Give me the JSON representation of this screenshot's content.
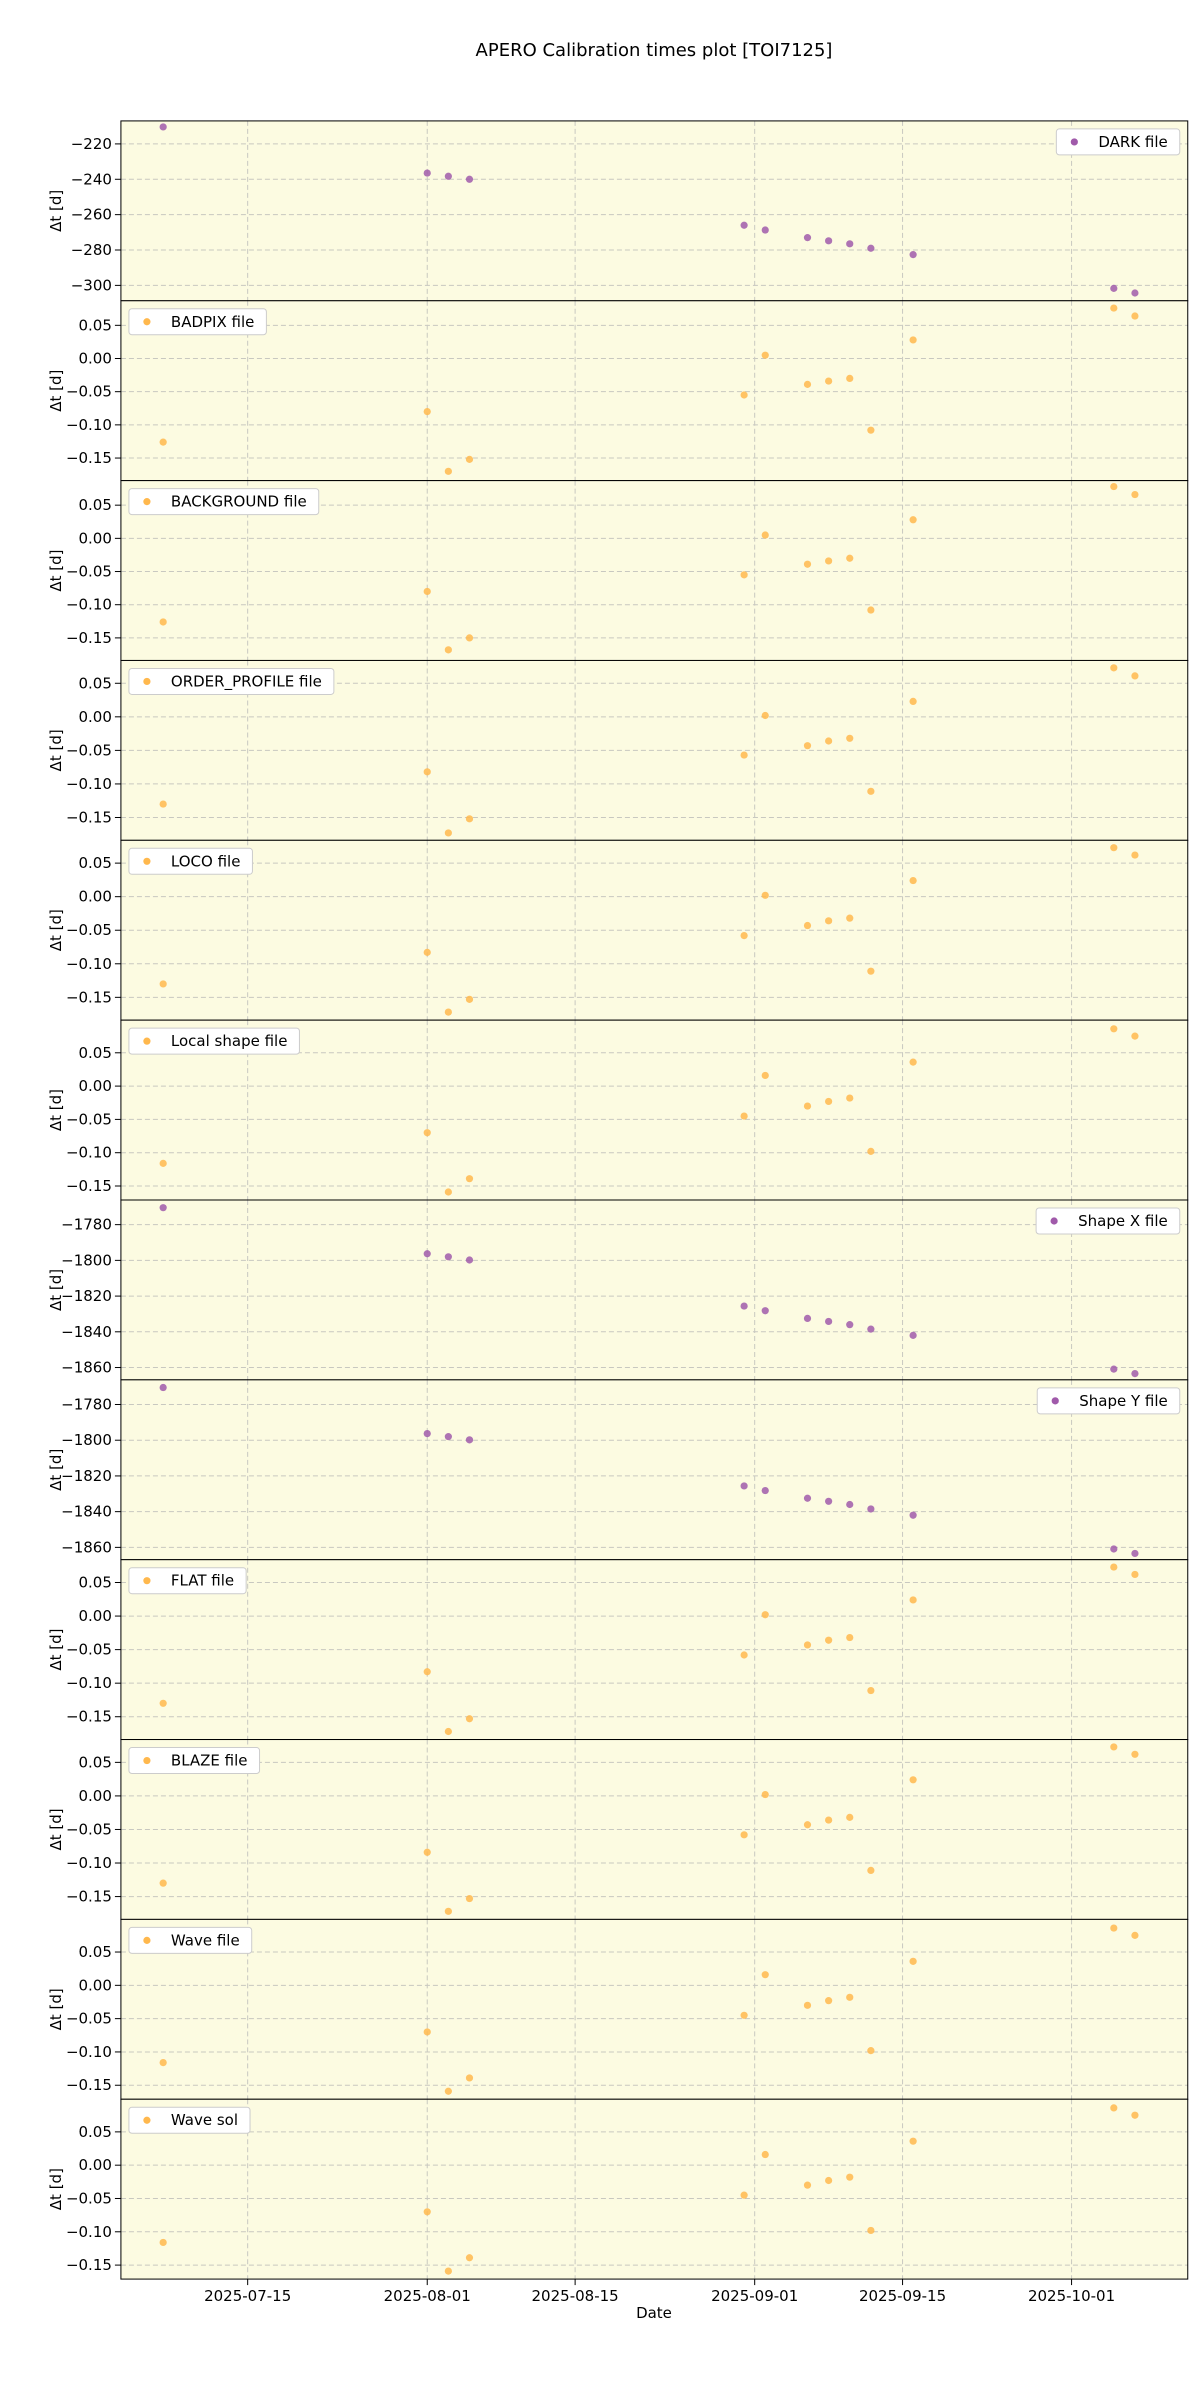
{
  "title": "APERO Calibration times plot [TOI7125]",
  "xlabel": "Date",
  "chart_data": [
    {
      "type": "scatter",
      "ylabel": "Δt [d]",
      "legend": "upper right",
      "grid": true,
      "x": [
        "2025-07-07",
        "2025-08-01",
        "2025-08-03",
        "2025-08-05",
        "2025-08-31",
        "2025-09-02",
        "2025-09-06",
        "2025-09-08",
        "2025-09-10",
        "2025-09-12",
        "2025-09-16",
        "2025-10-05",
        "2025-10-07"
      ],
      "xlim": [
        "2025-07-03",
        "2025-10-12"
      ],
      "xticks": [
        "2025-07-15",
        "2025-08-01",
        "2025-08-15",
        "2025-09-01",
        "2025-09-15",
        "2025-10-01"
      ],
      "ylim": [
        -308.7,
        -207
      ],
      "yticks": [
        {
          "value": -300,
          "label": "−300"
        },
        {
          "value": -280,
          "label": "−280"
        },
        {
          "value": -260,
          "label": "−260"
        },
        {
          "value": -240,
          "label": "−240"
        },
        {
          "value": -220,
          "label": "−220"
        }
      ],
      "series": [
        {
          "name": "DARK file",
          "color": "#a05aaa",
          "values": [
            -210.4,
            -236.5,
            -238.3,
            -240,
            -266,
            -268.7,
            -273,
            -274.8,
            -276.5,
            -279,
            -282.6,
            -301.7,
            -304.3
          ]
        }
      ]
    },
    {
      "type": "scatter",
      "ylabel": "Δt [d]",
      "legend": "upper left",
      "grid": true,
      "x": [
        "2025-07-07",
        "2025-08-01",
        "2025-08-03",
        "2025-08-05",
        "2025-08-31",
        "2025-09-02",
        "2025-09-06",
        "2025-09-08",
        "2025-09-10",
        "2025-09-12",
        "2025-09-16",
        "2025-10-05",
        "2025-10-07"
      ],
      "xlim": [
        "2025-07-03",
        "2025-10-12"
      ],
      "xticks": [
        "2025-07-15",
        "2025-08-01",
        "2025-08-15",
        "2025-09-01",
        "2025-09-15",
        "2025-10-01"
      ],
      "ylim": [
        -0.184,
        0.087
      ],
      "yticks": [
        {
          "value": -0.15,
          "label": "−0.15"
        },
        {
          "value": -0.1,
          "label": "−0.10"
        },
        {
          "value": -0.05,
          "label": "−0.05"
        },
        {
          "value": 0,
          "label": "0.00"
        },
        {
          "value": 0.05,
          "label": "0.05"
        }
      ],
      "series": [
        {
          "name": "BADPIX file",
          "color": "#ffb84d",
          "values": [
            -0.126,
            -0.08,
            -0.17,
            -0.152,
            -0.055,
            0.005,
            -0.039,
            -0.034,
            -0.03,
            -0.108,
            0.028,
            0.076,
            0.064
          ]
        }
      ]
    },
    {
      "type": "scatter",
      "ylabel": "Δt [d]",
      "legend": "upper left",
      "grid": true,
      "x": [
        "2025-07-07",
        "2025-08-01",
        "2025-08-03",
        "2025-08-05",
        "2025-08-31",
        "2025-09-02",
        "2025-09-06",
        "2025-09-08",
        "2025-09-10",
        "2025-09-12",
        "2025-09-16",
        "2025-10-05",
        "2025-10-07"
      ],
      "xlim": [
        "2025-07-03",
        "2025-10-12"
      ],
      "xticks": [
        "2025-07-15",
        "2025-08-01",
        "2025-08-15",
        "2025-09-01",
        "2025-09-15",
        "2025-10-01"
      ],
      "ylim": [
        -0.184,
        0.087
      ],
      "yticks": [
        {
          "value": -0.15,
          "label": "−0.15"
        },
        {
          "value": -0.1,
          "label": "−0.10"
        },
        {
          "value": -0.05,
          "label": "−0.05"
        },
        {
          "value": 0,
          "label": "0.00"
        },
        {
          "value": 0.05,
          "label": "0.05"
        }
      ],
      "series": [
        {
          "name": "BACKGROUND file",
          "color": "#ffb84d",
          "values": [
            -0.126,
            -0.08,
            -0.168,
            -0.15,
            -0.055,
            0.005,
            -0.039,
            -0.034,
            -0.03,
            -0.108,
            0.028,
            0.078,
            0.066
          ]
        }
      ]
    },
    {
      "type": "scatter",
      "ylabel": "Δt [d]",
      "legend": "upper left",
      "grid": true,
      "x": [
        "2025-07-07",
        "2025-08-01",
        "2025-08-03",
        "2025-08-05",
        "2025-08-31",
        "2025-09-02",
        "2025-09-06",
        "2025-09-08",
        "2025-09-10",
        "2025-09-12",
        "2025-09-16",
        "2025-10-05",
        "2025-10-07"
      ],
      "xlim": [
        "2025-07-03",
        "2025-10-12"
      ],
      "xticks": [
        "2025-07-15",
        "2025-08-01",
        "2025-08-15",
        "2025-09-01",
        "2025-09-15",
        "2025-10-01"
      ],
      "ylim": [
        -0.184,
        0.084
      ],
      "yticks": [
        {
          "value": -0.15,
          "label": "−0.15"
        },
        {
          "value": -0.1,
          "label": "−0.10"
        },
        {
          "value": -0.05,
          "label": "−0.05"
        },
        {
          "value": 0,
          "label": "0.00"
        },
        {
          "value": 0.05,
          "label": "0.05"
        }
      ],
      "series": [
        {
          "name": "ORDER_PROFILE file",
          "color": "#ffb84d",
          "values": [
            -0.13,
            -0.082,
            -0.173,
            -0.152,
            -0.057,
            0.002,
            -0.043,
            -0.036,
            -0.032,
            -0.111,
            0.023,
            0.073,
            0.061
          ]
        }
      ]
    },
    {
      "type": "scatter",
      "ylabel": "Δt [d]",
      "legend": "upper left",
      "grid": true,
      "x": [
        "2025-07-07",
        "2025-08-01",
        "2025-08-03",
        "2025-08-05",
        "2025-08-31",
        "2025-09-02",
        "2025-09-06",
        "2025-09-08",
        "2025-09-10",
        "2025-09-12",
        "2025-09-16",
        "2025-10-05",
        "2025-10-07"
      ],
      "xlim": [
        "2025-07-03",
        "2025-10-12"
      ],
      "xticks": [
        "2025-07-15",
        "2025-08-01",
        "2025-08-15",
        "2025-09-01",
        "2025-09-15",
        "2025-10-01"
      ],
      "ylim": [
        -0.184,
        0.084
      ],
      "yticks": [
        {
          "value": -0.15,
          "label": "−0.15"
        },
        {
          "value": -0.1,
          "label": "−0.10"
        },
        {
          "value": -0.05,
          "label": "−0.05"
        },
        {
          "value": 0,
          "label": "0.00"
        },
        {
          "value": 0.05,
          "label": "0.05"
        }
      ],
      "series": [
        {
          "name": "LOCO file",
          "color": "#ffb84d",
          "values": [
            -0.13,
            -0.083,
            -0.172,
            -0.153,
            -0.058,
            0.002,
            -0.043,
            -0.036,
            -0.032,
            -0.111,
            0.024,
            0.073,
            0.062
          ]
        }
      ]
    },
    {
      "type": "scatter",
      "ylabel": "Δt [d]",
      "legend": "upper left",
      "grid": true,
      "x": [
        "2025-07-07",
        "2025-08-01",
        "2025-08-03",
        "2025-08-05",
        "2025-08-31",
        "2025-09-02",
        "2025-09-06",
        "2025-09-08",
        "2025-09-10",
        "2025-09-12",
        "2025-09-16",
        "2025-10-05",
        "2025-10-07"
      ],
      "xlim": [
        "2025-07-03",
        "2025-10-12"
      ],
      "xticks": [
        "2025-07-15",
        "2025-08-01",
        "2025-08-15",
        "2025-09-01",
        "2025-09-15",
        "2025-10-01"
      ],
      "ylim": [
        -0.171,
        0.099
      ],
      "yticks": [
        {
          "value": -0.15,
          "label": "−0.15"
        },
        {
          "value": -0.1,
          "label": "−0.10"
        },
        {
          "value": -0.05,
          "label": "−0.05"
        },
        {
          "value": 0,
          "label": "0.00"
        },
        {
          "value": 0.05,
          "label": "0.05"
        }
      ],
      "series": [
        {
          "name": "Local shape file",
          "color": "#ffb84d",
          "values": [
            -0.116,
            -0.07,
            -0.159,
            -0.139,
            -0.045,
            0.016,
            -0.03,
            -0.023,
            -0.018,
            -0.098,
            0.036,
            0.086,
            0.075
          ]
        }
      ]
    },
    {
      "type": "scatter",
      "ylabel": "Δt [d]",
      "legend": "upper right",
      "grid": true,
      "x": [
        "2025-07-07",
        "2025-08-01",
        "2025-08-03",
        "2025-08-05",
        "2025-08-31",
        "2025-09-02",
        "2025-09-06",
        "2025-09-08",
        "2025-09-10",
        "2025-09-12",
        "2025-09-16",
        "2025-10-05",
        "2025-10-07"
      ],
      "xlim": [
        "2025-07-03",
        "2025-10-12"
      ],
      "xticks": [
        "2025-07-15",
        "2025-08-01",
        "2025-08-15",
        "2025-09-01",
        "2025-09-15",
        "2025-10-01"
      ],
      "ylim": [
        -1866.9,
        -1766.2
      ],
      "yticks": [
        {
          "value": -1860,
          "label": "−1860"
        },
        {
          "value": -1840,
          "label": "−1840"
        },
        {
          "value": -1820,
          "label": "−1820"
        },
        {
          "value": -1800,
          "label": "−1800"
        },
        {
          "value": -1780,
          "label": "−1780"
        }
      ],
      "series": [
        {
          "name": "Shape X file",
          "color": "#a05aaa",
          "values": [
            -1770.5,
            -1796.3,
            -1798,
            -1799.8,
            -1825.6,
            -1828.2,
            -1832.5,
            -1834.2,
            -1836,
            -1838.5,
            -1842,
            -1860.9,
            -1863.4
          ]
        }
      ]
    },
    {
      "type": "scatter",
      "ylabel": "Δt [d]",
      "legend": "upper right",
      "grid": true,
      "x": [
        "2025-07-07",
        "2025-08-01",
        "2025-08-03",
        "2025-08-05",
        "2025-08-31",
        "2025-09-02",
        "2025-09-06",
        "2025-09-08",
        "2025-09-10",
        "2025-09-12",
        "2025-09-16",
        "2025-10-05",
        "2025-10-07"
      ],
      "xlim": [
        "2025-07-03",
        "2025-10-12"
      ],
      "xticks": [
        "2025-07-15",
        "2025-08-01",
        "2025-08-15",
        "2025-09-01",
        "2025-09-15",
        "2025-10-01"
      ],
      "ylim": [
        -1866.9,
        -1766.2
      ],
      "yticks": [
        {
          "value": -1860,
          "label": "−1860"
        },
        {
          "value": -1840,
          "label": "−1840"
        },
        {
          "value": -1820,
          "label": "−1820"
        },
        {
          "value": -1800,
          "label": "−1800"
        },
        {
          "value": -1780,
          "label": "−1780"
        }
      ],
      "series": [
        {
          "name": "Shape Y file",
          "color": "#a05aaa",
          "values": [
            -1770.5,
            -1796.3,
            -1798,
            -1799.8,
            -1825.6,
            -1828.2,
            -1832.5,
            -1834.2,
            -1836,
            -1838.5,
            -1842,
            -1860.9,
            -1863.4
          ]
        }
      ]
    },
    {
      "type": "scatter",
      "ylabel": "Δt [d]",
      "legend": "upper left",
      "grid": true,
      "x": [
        "2025-07-07",
        "2025-08-01",
        "2025-08-03",
        "2025-08-05",
        "2025-08-31",
        "2025-09-02",
        "2025-09-06",
        "2025-09-08",
        "2025-09-10",
        "2025-09-12",
        "2025-09-16",
        "2025-10-05",
        "2025-10-07"
      ],
      "xlim": [
        "2025-07-03",
        "2025-10-12"
      ],
      "xticks": [
        "2025-07-15",
        "2025-08-01",
        "2025-08-15",
        "2025-09-01",
        "2025-09-15",
        "2025-10-01"
      ],
      "ylim": [
        -0.184,
        0.084
      ],
      "yticks": [
        {
          "value": -0.15,
          "label": "−0.15"
        },
        {
          "value": -0.1,
          "label": "−0.10"
        },
        {
          "value": -0.05,
          "label": "−0.05"
        },
        {
          "value": 0,
          "label": "0.00"
        },
        {
          "value": 0.05,
          "label": "0.05"
        }
      ],
      "series": [
        {
          "name": "FLAT file",
          "color": "#ffb84d",
          "values": [
            -0.13,
            -0.083,
            -0.172,
            -0.153,
            -0.058,
            0.002,
            -0.043,
            -0.036,
            -0.032,
            -0.111,
            0.024,
            0.073,
            0.062
          ]
        }
      ]
    },
    {
      "type": "scatter",
      "ylabel": "Δt [d]",
      "legend": "upper left",
      "grid": true,
      "x": [
        "2025-07-07",
        "2025-08-01",
        "2025-08-03",
        "2025-08-05",
        "2025-08-31",
        "2025-09-02",
        "2025-09-06",
        "2025-09-08",
        "2025-09-10",
        "2025-09-12",
        "2025-09-16",
        "2025-10-05",
        "2025-10-07"
      ],
      "xlim": [
        "2025-07-03",
        "2025-10-12"
      ],
      "xticks": [
        "2025-07-15",
        "2025-08-01",
        "2025-08-15",
        "2025-09-01",
        "2025-09-15",
        "2025-10-01"
      ],
      "ylim": [
        -0.184,
        0.084
      ],
      "yticks": [
        {
          "value": -0.15,
          "label": "−0.15"
        },
        {
          "value": -0.1,
          "label": "−0.10"
        },
        {
          "value": -0.05,
          "label": "−0.05"
        },
        {
          "value": 0,
          "label": "0.00"
        },
        {
          "value": 0.05,
          "label": "0.05"
        }
      ],
      "series": [
        {
          "name": "BLAZE file",
          "color": "#ffb84d",
          "values": [
            -0.13,
            -0.084,
            -0.172,
            -0.153,
            -0.058,
            0.002,
            -0.043,
            -0.036,
            -0.032,
            -0.111,
            0.024,
            0.073,
            0.062
          ]
        }
      ]
    },
    {
      "type": "scatter",
      "ylabel": "Δt [d]",
      "legend": "upper left",
      "grid": true,
      "x": [
        "2025-07-07",
        "2025-08-01",
        "2025-08-03",
        "2025-08-05",
        "2025-08-31",
        "2025-09-02",
        "2025-09-06",
        "2025-09-08",
        "2025-09-10",
        "2025-09-12",
        "2025-09-16",
        "2025-10-05",
        "2025-10-07"
      ],
      "xlim": [
        "2025-07-03",
        "2025-10-12"
      ],
      "xticks": [
        "2025-07-15",
        "2025-08-01",
        "2025-08-15",
        "2025-09-01",
        "2025-09-15",
        "2025-10-01"
      ],
      "ylim": [
        -0.171,
        0.099
      ],
      "yticks": [
        {
          "value": -0.15,
          "label": "−0.15"
        },
        {
          "value": -0.1,
          "label": "−0.10"
        },
        {
          "value": -0.05,
          "label": "−0.05"
        },
        {
          "value": 0,
          "label": "0.00"
        },
        {
          "value": 0.05,
          "label": "0.05"
        }
      ],
      "series": [
        {
          "name": "Wave file",
          "color": "#ffb84d",
          "values": [
            -0.116,
            -0.07,
            -0.159,
            -0.139,
            -0.045,
            0.016,
            -0.03,
            -0.023,
            -0.018,
            -0.098,
            0.036,
            0.086,
            0.075
          ]
        }
      ]
    },
    {
      "type": "scatter",
      "ylabel": "Δt [d]",
      "legend": "upper left",
      "grid": true,
      "x": [
        "2025-07-07",
        "2025-08-01",
        "2025-08-03",
        "2025-08-05",
        "2025-08-31",
        "2025-09-02",
        "2025-09-06",
        "2025-09-08",
        "2025-09-10",
        "2025-09-12",
        "2025-09-16",
        "2025-10-05",
        "2025-10-07"
      ],
      "xlim": [
        "2025-07-03",
        "2025-10-12"
      ],
      "xticks": [
        "2025-07-15",
        "2025-08-01",
        "2025-08-15",
        "2025-09-01",
        "2025-09-15",
        "2025-10-01"
      ],
      "ylim": [
        -0.171,
        0.099
      ],
      "yticks": [
        {
          "value": -0.15,
          "label": "−0.15"
        },
        {
          "value": -0.1,
          "label": "−0.10"
        },
        {
          "value": -0.05,
          "label": "−0.05"
        },
        {
          "value": 0,
          "label": "0.00"
        },
        {
          "value": 0.05,
          "label": "0.05"
        }
      ],
      "series": [
        {
          "name": "Wave sol",
          "color": "#ffb84d",
          "values": [
            -0.116,
            -0.07,
            -0.159,
            -0.139,
            -0.045,
            0.016,
            -0.03,
            -0.023,
            -0.018,
            -0.098,
            0.036,
            0.086,
            0.075
          ]
        }
      ]
    }
  ]
}
